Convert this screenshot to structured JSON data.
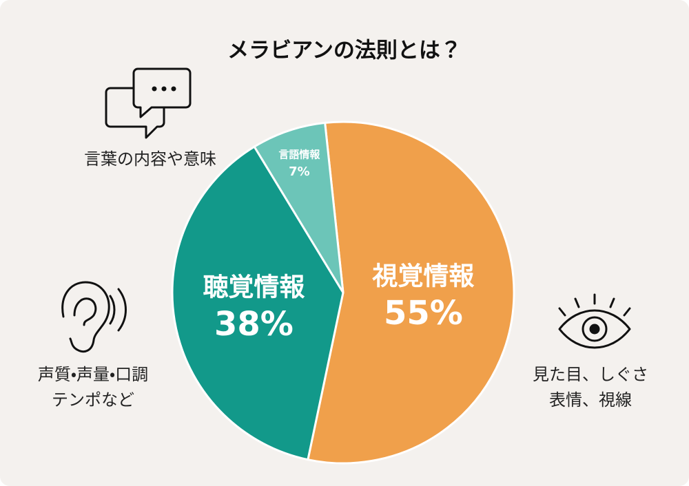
{
  "chart_data": {
    "type": "pie",
    "title": "メラビアンの法則とは？",
    "categories": [
      "視覚情報",
      "聴覚情報",
      "言語情報"
    ],
    "values": [
      55,
      38,
      7
    ],
    "value_labels": [
      "55%",
      "38%",
      "7%"
    ],
    "colors": [
      "#f0a04b",
      "#12998a",
      "#6cc5b8"
    ],
    "annotations": [
      "言葉の内容や意味",
      "声質・声量・口調",
      "テンポなど",
      "見た目、しぐさ",
      "表情、視線"
    ]
  }
}
